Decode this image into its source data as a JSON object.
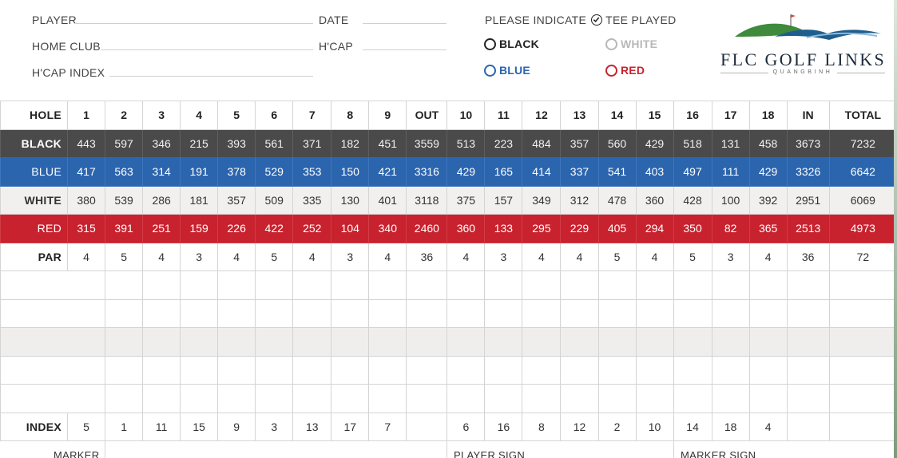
{
  "header": {
    "player_label": "PLAYER",
    "date_label": "DATE",
    "home_club_label": "HOME CLUB",
    "hcap_label": "H'CAP",
    "hcap_index_label": "H'CAP INDEX",
    "indicate_prefix": "PLEASE INDICATE",
    "indicate_suffix": "TEE PLAYED",
    "tees": {
      "black": {
        "label": "BLACK",
        "color": "#222222"
      },
      "white": {
        "label": "WHITE",
        "color": "#b8b8b8"
      },
      "blue": {
        "label": "BLUE",
        "color": "#2b65ae"
      },
      "red": {
        "label": "RED",
        "color": "#c8222e"
      }
    }
  },
  "logo": {
    "name": "FLC GOLF LINKS",
    "location": "QUANGBINH",
    "colors": {
      "green": "#3f8a3c",
      "blue": "#1e5e8e",
      "flag": "#d9482b"
    }
  },
  "scorecard": {
    "hole_label": "HOLE",
    "holes": [
      "1",
      "2",
      "3",
      "4",
      "5",
      "6",
      "7",
      "8",
      "9",
      "OUT",
      "10",
      "11",
      "12",
      "13",
      "14",
      "15",
      "16",
      "17",
      "18",
      "IN",
      "TOTAL"
    ],
    "rows": [
      {
        "label": "BLACK",
        "values": [
          "443",
          "597",
          "346",
          "215",
          "393",
          "561",
          "371",
          "182",
          "451",
          "3559",
          "513",
          "223",
          "484",
          "357",
          "560",
          "429",
          "518",
          "131",
          "458",
          "3673",
          "7232"
        ]
      },
      {
        "label": "BLUE",
        "values": [
          "417",
          "563",
          "314",
          "191",
          "378",
          "529",
          "353",
          "150",
          "421",
          "3316",
          "429",
          "165",
          "414",
          "337",
          "541",
          "403",
          "497",
          "111",
          "429",
          "3326",
          "6642"
        ]
      },
      {
        "label": "WHITE",
        "values": [
          "380",
          "539",
          "286",
          "181",
          "357",
          "509",
          "335",
          "130",
          "401",
          "3118",
          "375",
          "157",
          "349",
          "312",
          "478",
          "360",
          "428",
          "100",
          "392",
          "2951",
          "6069"
        ]
      },
      {
        "label": "RED",
        "values": [
          "315",
          "391",
          "251",
          "159",
          "226",
          "422",
          "252",
          "104",
          "340",
          "2460",
          "360",
          "133",
          "295",
          "229",
          "405",
          "294",
          "350",
          "82",
          "365",
          "2513",
          "4973"
        ]
      },
      {
        "label": "PAR",
        "values": [
          "4",
          "5",
          "4",
          "3",
          "4",
          "5",
          "4",
          "3",
          "4",
          "36",
          "4",
          "3",
          "4",
          "4",
          "5",
          "4",
          "5",
          "3",
          "4",
          "36",
          "72"
        ]
      }
    ],
    "index_label": "INDEX",
    "index_values": [
      "5",
      "1",
      "11",
      "15",
      "9",
      "3",
      "13",
      "17",
      "7",
      "",
      "6",
      "16",
      "8",
      "12",
      "2",
      "10",
      "14",
      "18",
      "4",
      "",
      ""
    ]
  },
  "footer": {
    "marker_label": "MARKER",
    "player_sign_label": "PLAYER SIGN",
    "marker_sign_label": "MARKER SIGN"
  }
}
